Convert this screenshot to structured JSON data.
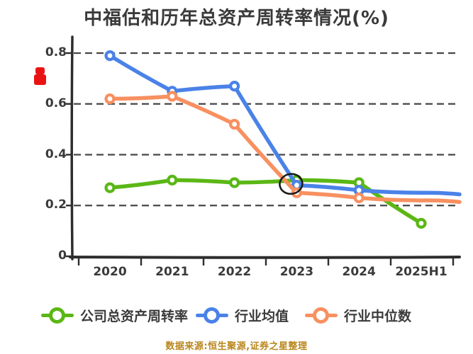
{
  "title": "中福估和历年总资产周转率情况(%)",
  "footer": "数据来源:恒生聚源,证券之星整理",
  "decorations": {
    "red_stamp": "red-seal-mark",
    "stamp_color": "#e91313"
  },
  "axes": {
    "y_ticks": [
      {
        "label": "0.8",
        "value": 0.8
      },
      {
        "label": "0.6",
        "value": 0.6
      },
      {
        "label": "0.4",
        "value": 0.4
      },
      {
        "label": "0.2",
        "value": 0.2
      },
      {
        "label": "0",
        "value": 0.0
      }
    ],
    "x_ticks": [
      "2020",
      "2021",
      "2022",
      "2023",
      "2024",
      "2025H1"
    ]
  },
  "legend": {
    "items": [
      {
        "label": "公司总资产周转率",
        "color": "#5bb715"
      },
      {
        "label": "行业均值",
        "color": "#4a82e8"
      },
      {
        "label": "行业中位数",
        "color": "#f89060"
      }
    ]
  },
  "chart_data": {
    "type": "line",
    "title": "中福估和历年总资产周转率情况(%)",
    "categories": [
      "2020",
      "2021",
      "2022",
      "2023",
      "2024",
      "2025H1"
    ],
    "series": [
      {
        "name": "公司总资产周转率",
        "color": "#5bb715",
        "values": [
          0.27,
          0.3,
          0.29,
          0.3,
          0.29,
          0.13
        ],
        "last_marker": true,
        "extends_to_right_edge": false
      },
      {
        "name": "行业均值",
        "color": "#4a82e8",
        "values": [
          0.79,
          0.65,
          0.67,
          0.28,
          0.26,
          0.25
        ],
        "last_marker": false,
        "extends_to_right_edge": true
      },
      {
        "name": "行业中位数",
        "color": "#f89060",
        "values": [
          0.62,
          0.63,
          0.52,
          0.25,
          0.23,
          0.22
        ],
        "last_marker": false,
        "extends_to_right_edge": true
      }
    ],
    "xlabel": "",
    "ylabel": "",
    "ylim": [
      0,
      0.8
    ],
    "grid": "horizontal dashed",
    "legend_position": "bottom",
    "style": "xkcd hand-drawn",
    "annotation": {
      "type": "ellipse",
      "category_index": 3,
      "value": 0.285,
      "note": "dark ellipse circled around 2023 company/industry points"
    }
  },
  "colors": {
    "axis": "#2d2d2d",
    "grid": "#333333",
    "title_text": "#3a3a3a",
    "tick_text": "#3a3a3a",
    "footer_text": "#b9861b",
    "background": "#ffffff"
  }
}
